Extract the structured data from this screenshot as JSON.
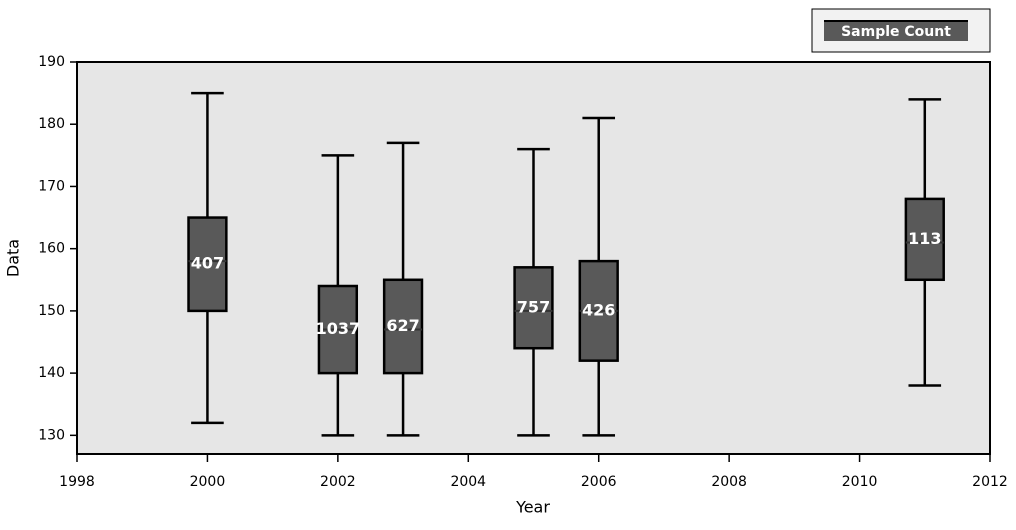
{
  "chart_data": {
    "type": "box",
    "x_label": "Year",
    "y_label": "Data",
    "legend_label": "Sample Count",
    "legend_position": "top-right",
    "box_color": "#595959",
    "background": "#e6e6e6",
    "xlim": [
      1998,
      2012
    ],
    "xticks": [
      1998,
      2000,
      2002,
      2004,
      2006,
      2008,
      2010,
      2012
    ],
    "ylim": [
      127,
      190
    ],
    "yticks": [
      130,
      140,
      150,
      160,
      170,
      180,
      190
    ],
    "boxes": [
      {
        "x": 2000,
        "min": 132,
        "q1": 150,
        "median": 158,
        "q3": 165,
        "max": 185,
        "count": 407
      },
      {
        "x": 2002,
        "min": 130,
        "q1": 140,
        "median": 147,
        "q3": 154,
        "max": 175,
        "count": 1037
      },
      {
        "x": 2003,
        "min": 130,
        "q1": 140,
        "median": 147,
        "q3": 155,
        "max": 177,
        "count": 627
      },
      {
        "x": 2005,
        "min": 130,
        "q1": 144,
        "median": 150,
        "q3": 157,
        "max": 176,
        "count": 757
      },
      {
        "x": 2006,
        "min": 130,
        "q1": 142,
        "median": 150,
        "q3": 158,
        "max": 181,
        "count": 426
      },
      {
        "x": 2011,
        "min": 138,
        "q1": 155,
        "median": 161,
        "q3": 168,
        "max": 184,
        "count": 113
      }
    ]
  }
}
